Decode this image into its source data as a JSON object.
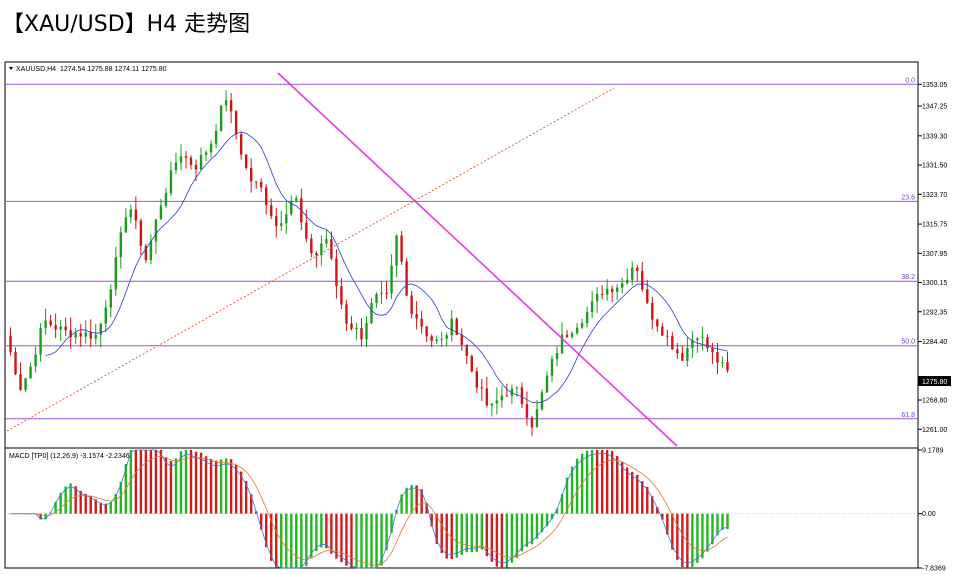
{
  "page": {
    "title": "【XAU/USD】H4 走势图"
  },
  "chart_data": [
    {
      "type": "candlestick",
      "symbol_label": "XAUUSD,H4",
      "ohlc_label": "1274.54 1275.88 1274.11 1275.80",
      "current_price": "1275.80",
      "ylim": [
        1256,
        1359
      ],
      "ytick_labels": [
        "1353.05",
        "1347.25",
        "1339.30",
        "1331.50",
        "1323.70",
        "1315.75",
        "1307.95",
        "1300.15",
        "1292.35",
        "1284.40",
        "1268.80",
        "1261.00"
      ],
      "ytick_values": [
        1353.05,
        1347.25,
        1339.3,
        1331.5,
        1323.7,
        1315.75,
        1307.95,
        1300.15,
        1292.35,
        1284.4,
        1268.8,
        1261.0
      ],
      "fib_levels": [
        {
          "label": "0.0",
          "value": 1353.05
        },
        {
          "label": "23.6",
          "value": 1321.8
        },
        {
          "label": "38.2",
          "value": 1300.5
        },
        {
          "label": "50.0",
          "value": 1283.3
        },
        {
          "label": "61.8",
          "value": 1263.8
        }
      ],
      "bars": 144,
      "price_path": [
        [
          0,
          1286
        ],
        [
          6,
          1272
        ],
        [
          10,
          1278
        ],
        [
          15,
          1290
        ],
        [
          23,
          1287
        ],
        [
          36,
          1286
        ],
        [
          42,
          1302
        ],
        [
          48,
          1322
        ],
        [
          55,
          1306
        ],
        [
          60,
          1320
        ],
        [
          68,
          1335
        ],
        [
          74,
          1331
        ],
        [
          80,
          1337
        ],
        [
          86,
          1350
        ],
        [
          90,
          1340
        ],
        [
          95,
          1328
        ],
        [
          100,
          1325
        ],
        [
          106,
          1315
        ],
        [
          113,
          1324
        ],
        [
          117,
          1311
        ],
        [
          121,
          1307
        ],
        [
          125,
          1313
        ],
        [
          129,
          1300
        ],
        [
          133,
          1290
        ],
        [
          139,
          1286
        ],
        [
          144,
          1296
        ],
        [
          149,
          1296
        ],
        [
          153,
          1313
        ],
        [
          157,
          1295
        ],
        [
          166,
          1285
        ],
        [
          170,
          1284
        ],
        [
          175,
          1290
        ],
        [
          183,
          1275
        ],
        [
          189,
          1266
        ],
        [
          195,
          1271
        ],
        [
          200,
          1271
        ],
        [
          206,
          1262
        ],
        [
          212,
          1276
        ],
        [
          217,
          1285
        ],
        [
          227,
          1292
        ],
        [
          233,
          1298
        ],
        [
          241,
          1300
        ],
        [
          246,
          1306
        ],
        [
          251,
          1293
        ],
        [
          258,
          1286
        ],
        [
          264,
          1280
        ],
        [
          270,
          1287
        ],
        [
          276,
          1281
        ],
        [
          282,
          1276
        ]
      ],
      "drawn_bars": 95,
      "macd": {
        "label": "MACD [TP0] (12,26,9) -3.1574 -2.2346",
        "ylim": [
          -7.8369,
          9.1789
        ],
        "ytick_labels": [
          "9.1789",
          "0.00",
          "-7.8369"
        ],
        "ytick_values": [
          9.1789,
          0.0,
          -7.8369
        ]
      }
    }
  ]
}
